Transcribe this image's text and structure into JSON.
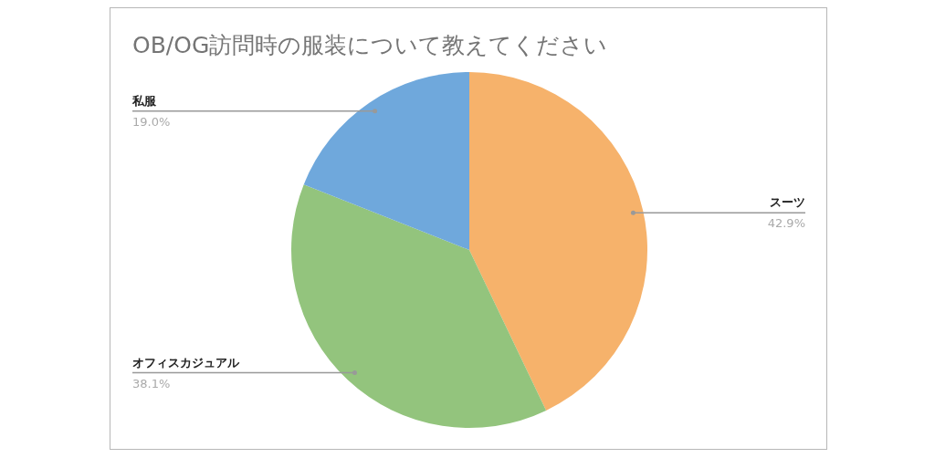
{
  "chart_data": {
    "type": "pie",
    "title": "OB/OG訪問時の服装について教えてください",
    "categories": [
      "スーツ",
      "オフィスカジュアル",
      "私服"
    ],
    "values": [
      42.9,
      38.1,
      19.0
    ],
    "value_labels": [
      "42.9%",
      "38.1%",
      "19.0%"
    ],
    "colors": [
      "#f6b26b",
      "#93c47d",
      "#6fa8dc"
    ]
  }
}
